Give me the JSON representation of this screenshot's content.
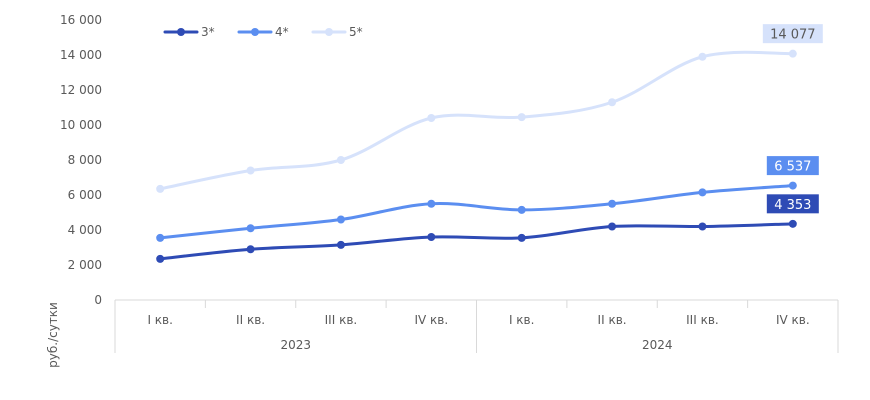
{
  "chart_data": {
    "type": "line",
    "ylabel": "руб./сутки",
    "ylim": [
      0,
      16000
    ],
    "yticks": [
      "0",
      "2 000",
      "4 000",
      "6 000",
      "8 000",
      "10 000",
      "12 000",
      "14 000",
      "16 000"
    ],
    "grid": false,
    "legend_position": "top-left",
    "categories": [
      "I кв.",
      "II кв.",
      "III кв.",
      "IV кв.",
      "I кв.",
      "II кв.",
      "III кв.",
      "IV кв."
    ],
    "groups": [
      {
        "label": "2023",
        "count": 4
      },
      {
        "label": "2024",
        "count": 4
      }
    ],
    "series": [
      {
        "name": "3*",
        "color": "#2e4bb5",
        "values": [
          2350,
          2900,
          3150,
          3600,
          3550,
          4200,
          4200,
          4353
        ],
        "end_label": "4 353",
        "end_label_text_color": "#ffffff"
      },
      {
        "name": "4*",
        "color": "#5b8ef0",
        "values": [
          3550,
          4100,
          4600,
          5500,
          5150,
          5500,
          6150,
          6537
        ],
        "end_label": "6 537",
        "end_label_text_color": "#ffffff"
      },
      {
        "name": "5*",
        "color": "#d6e2fb",
        "values": [
          6350,
          7400,
          8000,
          10400,
          10450,
          11300,
          13900,
          14077
        ],
        "end_label": "14 077",
        "end_label_text_color": "#595959"
      }
    ]
  }
}
